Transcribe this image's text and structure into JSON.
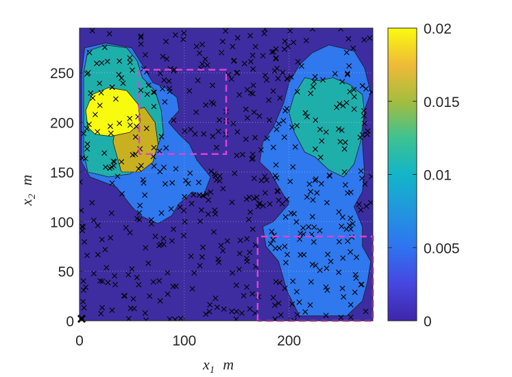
{
  "chart_data": {
    "type": "heatmap",
    "title": "",
    "xlabel": {
      "var": "x",
      "sub": "1",
      "unit": "m"
    },
    "ylabel": {
      "var": "x",
      "sub": "2",
      "unit": "m"
    },
    "xlim": [
      0,
      280
    ],
    "ylim": [
      0,
      295
    ],
    "xticks": [
      0,
      100,
      200
    ],
    "yticks": [
      0,
      50,
      100,
      150,
      200,
      250
    ],
    "grid": true,
    "colormap": "parula",
    "colorbar": {
      "min": 0,
      "max": 0.02,
      "ticks": [
        "0",
        "0.005",
        "0.01",
        "0.015",
        "0.02"
      ]
    },
    "levels": [
      {
        "level": 0.005,
        "color": "#2F78EE"
      },
      {
        "level": 0.01,
        "color": "#1FAFAB"
      },
      {
        "level": 0.015,
        "color": "#C8B020"
      },
      {
        "level": 0.02,
        "color": "#F9FB0E"
      }
    ],
    "background_color": "#3D2DA0",
    "regions": [
      {
        "name": "left-cluster",
        "level": 0.005,
        "polygon": [
          [
            10,
            145
          ],
          [
            35,
            135
          ],
          [
            50,
            115
          ],
          [
            58,
            106
          ],
          [
            75,
            98
          ],
          [
            88,
            106
          ],
          [
            95,
            118
          ],
          [
            108,
            130
          ],
          [
            118,
            125
          ],
          [
            125,
            145
          ],
          [
            112,
            162
          ],
          [
            105,
            178
          ],
          [
            95,
            188
          ],
          [
            85,
            200
          ],
          [
            95,
            212
          ],
          [
            93,
            225
          ],
          [
            82,
            235
          ],
          [
            70,
            240
          ],
          [
            60,
            258
          ],
          [
            50,
            275
          ],
          [
            25,
            280
          ],
          [
            5,
            275
          ],
          [
            2,
            250
          ],
          [
            2,
            160
          ]
        ]
      },
      {
        "name": "left-cluster",
        "level": 0.01,
        "polygon": [
          [
            8,
            150
          ],
          [
            28,
            145
          ],
          [
            48,
            148
          ],
          [
            58,
            155
          ],
          [
            72,
            170
          ],
          [
            80,
            190
          ],
          [
            78,
            212
          ],
          [
            72,
            232
          ],
          [
            60,
            245
          ],
          [
            55,
            262
          ],
          [
            45,
            275
          ],
          [
            25,
            278
          ],
          [
            8,
            272
          ],
          [
            4,
            250
          ],
          [
            4,
            170
          ]
        ]
      },
      {
        "name": "left-cluster",
        "level": 0.015,
        "polygon": [
          [
            40,
            150
          ],
          [
            58,
            150
          ],
          [
            70,
            160
          ],
          [
            75,
            178
          ],
          [
            72,
            200
          ],
          [
            62,
            215
          ],
          [
            48,
            212
          ],
          [
            35,
            200
          ],
          [
            32,
            180
          ]
        ]
      },
      {
        "name": "left-cluster",
        "level": 0.02,
        "polygon": [
          [
            8,
            195
          ],
          [
            15,
            188
          ],
          [
            30,
            186
          ],
          [
            48,
            190
          ],
          [
            58,
            200
          ],
          [
            56,
            218
          ],
          [
            45,
            232
          ],
          [
            28,
            235
          ],
          [
            12,
            228
          ],
          [
            6,
            212
          ]
        ]
      },
      {
        "name": "right-cluster",
        "level": 0.005,
        "polygon": [
          [
            172,
            160
          ],
          [
            182,
            150
          ],
          [
            190,
            135
          ],
          [
            200,
            118
          ],
          [
            185,
            100
          ],
          [
            175,
            95
          ],
          [
            178,
            75
          ],
          [
            190,
            60
          ],
          [
            198,
            30
          ],
          [
            210,
            5
          ],
          [
            255,
            5
          ],
          [
            270,
            20
          ],
          [
            275,
            40
          ],
          [
            278,
            60
          ],
          [
            270,
            75
          ],
          [
            270,
            95
          ],
          [
            262,
            115
          ],
          [
            270,
            130
          ],
          [
            272,
            150
          ],
          [
            270,
            180
          ],
          [
            272,
            212
          ],
          [
            278,
            230
          ],
          [
            272,
            255
          ],
          [
            262,
            272
          ],
          [
            238,
            278
          ],
          [
            222,
            270
          ],
          [
            210,
            258
          ],
          [
            200,
            240
          ],
          [
            195,
            220
          ],
          [
            185,
            195
          ],
          [
            175,
            180
          ]
        ]
      },
      {
        "name": "right-cluster",
        "level": 0.01,
        "polygon": [
          [
            215,
            170
          ],
          [
            225,
            165
          ],
          [
            238,
            152
          ],
          [
            252,
            145
          ],
          [
            262,
            158
          ],
          [
            268,
            180
          ],
          [
            272,
            210
          ],
          [
            270,
            228
          ],
          [
            258,
            238
          ],
          [
            242,
            245
          ],
          [
            228,
            242
          ],
          [
            215,
            245
          ],
          [
            205,
            228
          ],
          [
            200,
            210
          ],
          [
            205,
            190
          ]
        ]
      }
    ],
    "dashed_boxes": [
      {
        "name": "upper-box",
        "color": "#E040D8",
        "polygon": [
          [
            57,
            168
          ],
          [
            57,
            253
          ],
          [
            140,
            253
          ],
          [
            140,
            168
          ],
          [
            57,
            168
          ]
        ]
      },
      {
        "name": "lower-box",
        "color": "#E040D8",
        "polygon": [
          [
            170,
            0
          ],
          [
            170,
            85
          ],
          [
            280,
            85
          ],
          [
            280,
            0
          ],
          [
            170,
            0
          ]
        ]
      }
    ],
    "markers": [
      {
        "name": "origin-marker",
        "x": 2,
        "y": 2,
        "symbol": "x"
      }
    ]
  }
}
